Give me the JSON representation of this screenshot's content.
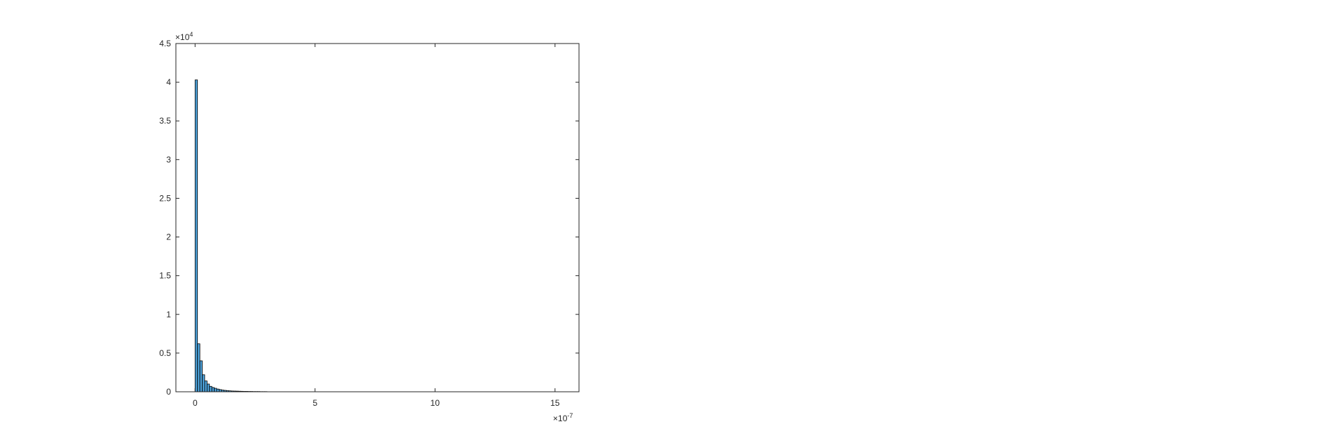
{
  "chart_data": {
    "type": "bar",
    "title": "",
    "xlabel": "",
    "ylabel": "",
    "x_multiplier": "10",
    "x_exponent": "-7",
    "y_multiplier": "10",
    "y_exponent": "4",
    "xlim": [
      -0.8,
      16
    ],
    "ylim": [
      0,
      4.5
    ],
    "x_ticks": [
      0,
      5,
      10,
      15
    ],
    "y_ticks": [
      0,
      0.5,
      1,
      1.5,
      2,
      2.5,
      3,
      3.5,
      4,
      4.5
    ],
    "x_tick_labels": [
      "0",
      "5",
      "10",
      "15"
    ],
    "y_tick_labels": [
      "0",
      "0.5",
      "1",
      "1.5",
      "2",
      "2.5",
      "3",
      "3.5",
      "4",
      "4.5"
    ],
    "bin_width": 0.1,
    "bins_start": 0,
    "bin_values": [
      4.03,
      0.62,
      0.4,
      0.22,
      0.14,
      0.1,
      0.07,
      0.055,
      0.045,
      0.035,
      0.028,
      0.022,
      0.018,
      0.015,
      0.012,
      0.01,
      0.009,
      0.008,
      0.007,
      0.006,
      0.005,
      0.005,
      0.004,
      0.004,
      0.003,
      0.003,
      0.003,
      0.002,
      0.002,
      0.002
    ],
    "grid": false,
    "legend": "none",
    "bar_fill": "#4c9fd6",
    "bar_edge": "#000000",
    "axis_color": "#262626"
  }
}
